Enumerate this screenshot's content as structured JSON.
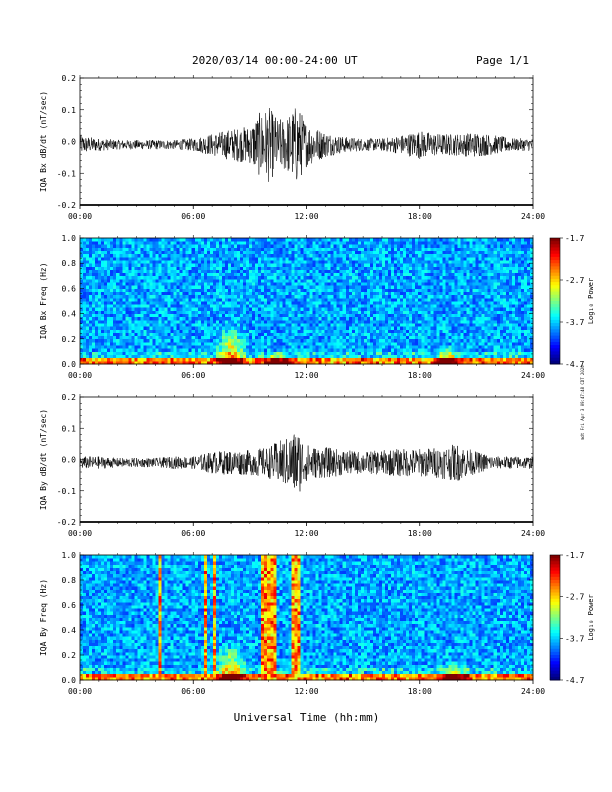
{
  "header": {
    "title": "2020/03/14  00:00-24:00 UT",
    "page": "Page 1/1"
  },
  "side_note": "mdt Fri Apr 3 09:47:48 CDT 2020",
  "chart_data": [
    {
      "type": "line",
      "ylabel": "IQA Bx dB/dt (nT/sec)",
      "xlim": [
        0,
        24
      ],
      "ylim": [
        -0.2,
        0.2
      ],
      "yticks": [
        "0.2",
        "0.1",
        "0.0",
        "-0.1",
        "-0.2"
      ],
      "xticks": [
        "00:00",
        "06:00",
        "12:00",
        "18:00",
        "24:00"
      ],
      "envelope": {
        "hours": [
          0,
          1,
          2,
          3,
          4,
          5,
          6,
          7,
          8,
          9,
          9.5,
          10,
          10.5,
          11,
          11.5,
          12,
          13,
          14,
          15,
          16,
          17,
          18,
          19,
          20,
          21,
          22,
          23,
          24
        ],
        "amplitude": [
          0.03,
          0.02,
          0.015,
          0.015,
          0.015,
          0.015,
          0.02,
          0.035,
          0.05,
          0.06,
          0.1,
          0.12,
          0.08,
          0.09,
          0.13,
          0.07,
          0.04,
          0.025,
          0.02,
          0.02,
          0.03,
          0.045,
          0.035,
          0.035,
          0.04,
          0.03,
          0.02,
          0.02
        ]
      }
    },
    {
      "type": "heatmap",
      "ylabel": "IQA Bx Freq (Hz)",
      "xlim": [
        0,
        24
      ],
      "ylim": [
        0,
        1.0
      ],
      "yticks": [
        "1.0",
        "0.8",
        "0.6",
        "0.4",
        "0.2",
        "0.0"
      ],
      "xticks": [
        "00:00",
        "06:00",
        "12:00",
        "18:00",
        "24:00"
      ],
      "colorbar": {
        "label": "Log₁₀ Power",
        "ticks": [
          "-1.7",
          "-2.7",
          "-3.7",
          "-4.7"
        ],
        "range": [
          -4.7,
          -1.7
        ]
      },
      "enhancements": [
        {
          "hour": 8.0,
          "max_freq": 0.32
        },
        {
          "hour": 10.5,
          "max_freq": 0.1
        },
        {
          "hour": 19.5,
          "max_freq": 0.15
        }
      ],
      "vertical_bands": []
    },
    {
      "type": "line",
      "ylabel": "IQA By dB/dt (nT/sec)",
      "xlim": [
        0,
        24
      ],
      "ylim": [
        -0.2,
        0.2
      ],
      "yticks": [
        "0.2",
        "0.1",
        "0.0",
        "-0.1",
        "-0.2"
      ],
      "xticks": [
        "00:00",
        "06:00",
        "12:00",
        "18:00",
        "24:00"
      ],
      "envelope": {
        "hours": [
          0,
          1,
          2,
          3,
          4,
          5,
          6,
          7,
          8,
          9,
          10,
          10.5,
          11,
          11.5,
          12,
          12.5,
          13,
          14,
          15,
          16,
          17,
          18,
          19,
          20,
          21,
          22,
          23,
          24
        ],
        "amplitude": [
          0.02,
          0.02,
          0.015,
          0.015,
          0.015,
          0.02,
          0.02,
          0.035,
          0.04,
          0.04,
          0.05,
          0.07,
          0.08,
          0.11,
          0.06,
          0.05,
          0.05,
          0.04,
          0.035,
          0.04,
          0.045,
          0.045,
          0.05,
          0.06,
          0.035,
          0.02,
          0.02,
          0.02
        ]
      }
    },
    {
      "type": "heatmap",
      "ylabel": "IQA By Freq (Hz)",
      "xlim": [
        0,
        24
      ],
      "ylim": [
        0,
        1.0
      ],
      "yticks": [
        "1.0",
        "0.8",
        "0.6",
        "0.4",
        "0.2",
        "0.0"
      ],
      "xticks": [
        "00:00",
        "06:00",
        "12:00",
        "18:00",
        "24:00"
      ],
      "colorbar": {
        "label": "Log₁₀ Power",
        "ticks": [
          "-1.7",
          "-2.7",
          "-3.7",
          "-4.7"
        ],
        "range": [
          -4.7,
          -1.7
        ]
      },
      "enhancements": [
        {
          "hour": 8.0,
          "max_freq": 0.3
        },
        {
          "hour": 19.8,
          "max_freq": 0.15
        }
      ],
      "vertical_bands": [
        {
          "start": 4.2,
          "end": 4.3
        },
        {
          "start": 6.5,
          "end": 6.75
        },
        {
          "start": 7.0,
          "end": 7.15
        },
        {
          "start": 9.65,
          "end": 10.4
        },
        {
          "start": 11.2,
          "end": 11.6
        }
      ]
    }
  ],
  "xlabel": "Universal Time (hh:mm)"
}
